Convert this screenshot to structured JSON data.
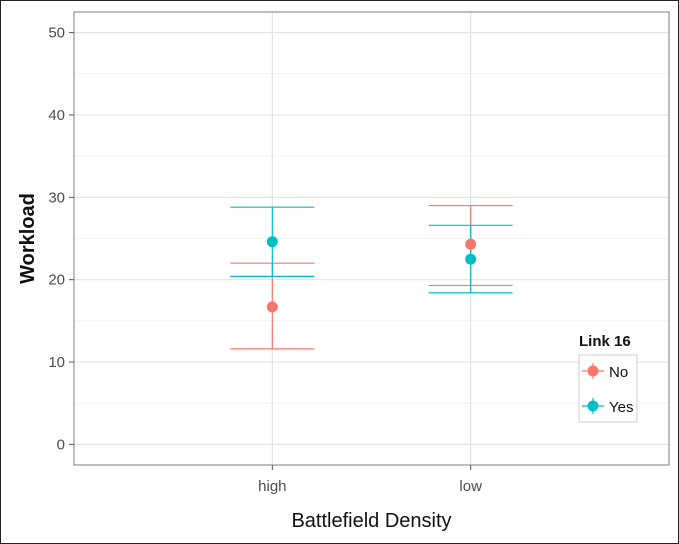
{
  "chart_data": {
    "type": "scatter",
    "xlabel": "Battlefield Density",
    "ylabel": "Workload",
    "categories": [
      "high",
      "low"
    ],
    "ylim": [
      -2.5,
      52.5
    ],
    "yticks": [
      0,
      10,
      20,
      30,
      40,
      50
    ],
    "grid": true,
    "legend": {
      "title": "Link 16",
      "position": "right-bottom"
    },
    "series": [
      {
        "name": "No",
        "color": "#f8766d",
        "points": [
          {
            "x": "high",
            "y": 16.7,
            "ymin": 11.6,
            "ymax": 22.0
          },
          {
            "x": "low",
            "y": 24.3,
            "ymin": 19.3,
            "ymax": 29.0
          }
        ]
      },
      {
        "name": "Yes",
        "color": "#00bfc4",
        "points": [
          {
            "x": "high",
            "y": 24.6,
            "ymin": 20.4,
            "ymax": 28.8
          },
          {
            "x": "low",
            "y": 22.5,
            "ymin": 18.4,
            "ymax": 26.6
          }
        ]
      }
    ]
  }
}
